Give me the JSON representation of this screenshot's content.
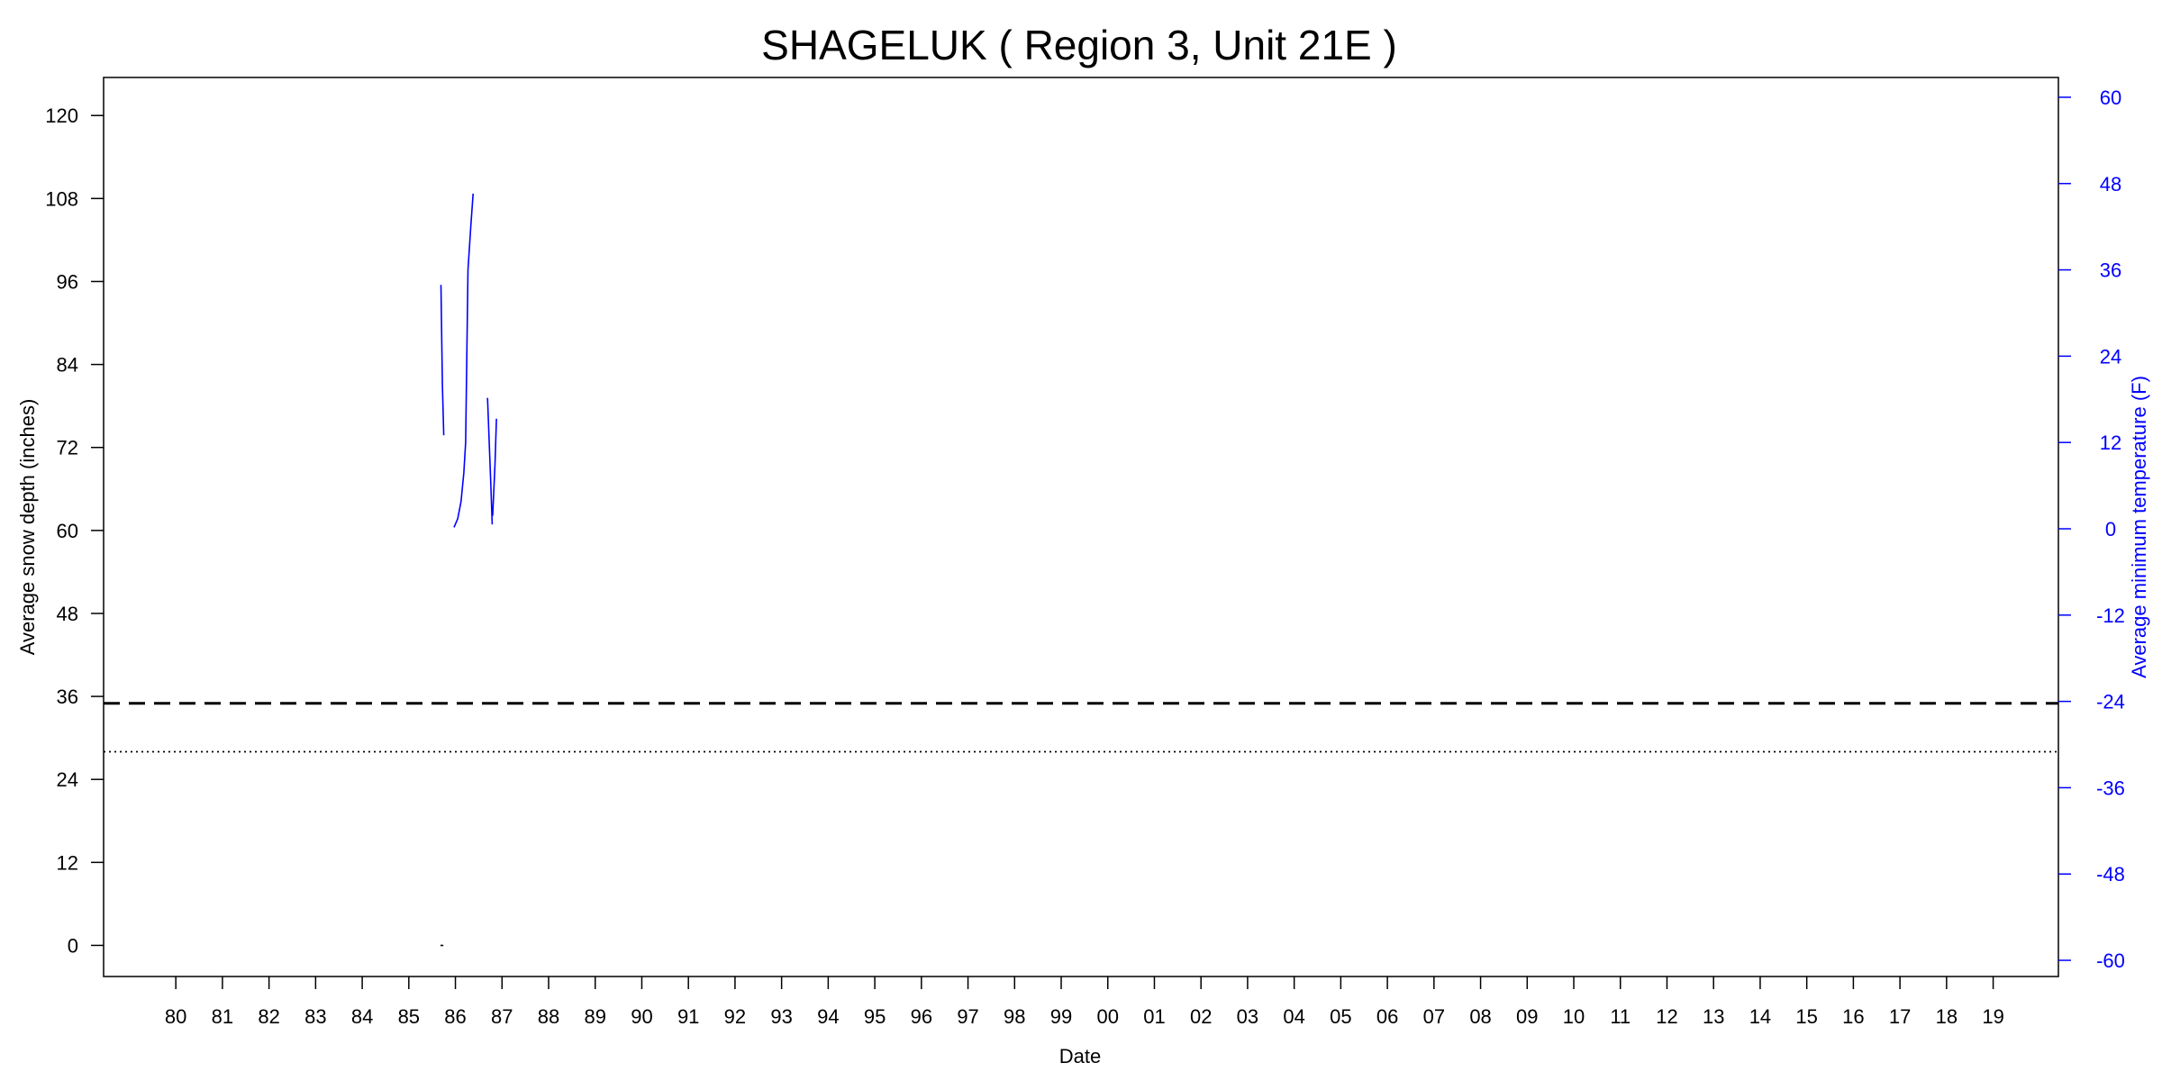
{
  "chart_data": {
    "type": "line",
    "title": "SHAGELUK ( Region 3, Unit 21E )",
    "xlabel": "Date",
    "ylabel_left": "Average snow depth (inches)",
    "ylabel_right": "Average minimum temperature (F)",
    "x_tick_labels": [
      "80",
      "81",
      "82",
      "83",
      "84",
      "85",
      "86",
      "87",
      "88",
      "89",
      "90",
      "91",
      "92",
      "93",
      "94",
      "95",
      "96",
      "97",
      "98",
      "99",
      "00",
      "01",
      "02",
      "03",
      "04",
      "05",
      "06",
      "07",
      "08",
      "09",
      "10",
      "11",
      "12",
      "13",
      "14",
      "15",
      "16",
      "17",
      "18",
      "19"
    ],
    "x_range": [
      1978.45,
      2020.4
    ],
    "y_left_ticks": [
      0,
      12,
      24,
      36,
      48,
      60,
      72,
      84,
      96,
      108,
      120
    ],
    "y_left_range": [
      -4.5,
      125.5
    ],
    "y_right_ticks": [
      -60,
      -48,
      -36,
      -24,
      -12,
      0,
      12,
      24,
      36,
      48,
      60
    ],
    "y_right_range": [
      -62.25,
      62.75
    ],
    "colors": {
      "snow": "#000000",
      "temperature": "#0000ff",
      "reference": "#000000"
    },
    "grid": false,
    "reference_lines": [
      {
        "style": "dashed",
        "axis": "left",
        "y": 35
      },
      {
        "style": "dotted",
        "axis": "left",
        "y": 28
      }
    ],
    "series": [
      {
        "axis": "left",
        "color": "#000000",
        "points": [
          [
            1985.68,
            0
          ],
          [
            1985.74,
            0
          ]
        ]
      },
      {
        "axis": "right",
        "color": "#0000ff",
        "points": [
          [
            1985.69,
            33.9
          ],
          [
            1985.72,
            20.0
          ],
          [
            1985.75,
            13.0
          ]
        ]
      },
      {
        "axis": "right",
        "color": "#0000ff",
        "points": [
          [
            1985.97,
            0.2
          ],
          [
            1986.05,
            1.4
          ],
          [
            1986.12,
            3.8
          ],
          [
            1986.18,
            7.8
          ],
          [
            1986.22,
            12.0
          ],
          [
            1986.27,
            36.0
          ],
          [
            1986.33,
            42.0
          ],
          [
            1986.38,
            46.6
          ]
        ]
      },
      {
        "axis": "right",
        "color": "#0000ff",
        "points": [
          [
            1986.69,
            18.2
          ],
          [
            1986.76,
            6.0
          ],
          [
            1986.79,
            0.6
          ]
        ]
      },
      {
        "axis": "right",
        "color": "#0000ff",
        "points": [
          [
            1986.8,
            1.8
          ],
          [
            1986.85,
            9.0
          ],
          [
            1986.88,
            15.3
          ]
        ]
      }
    ]
  }
}
